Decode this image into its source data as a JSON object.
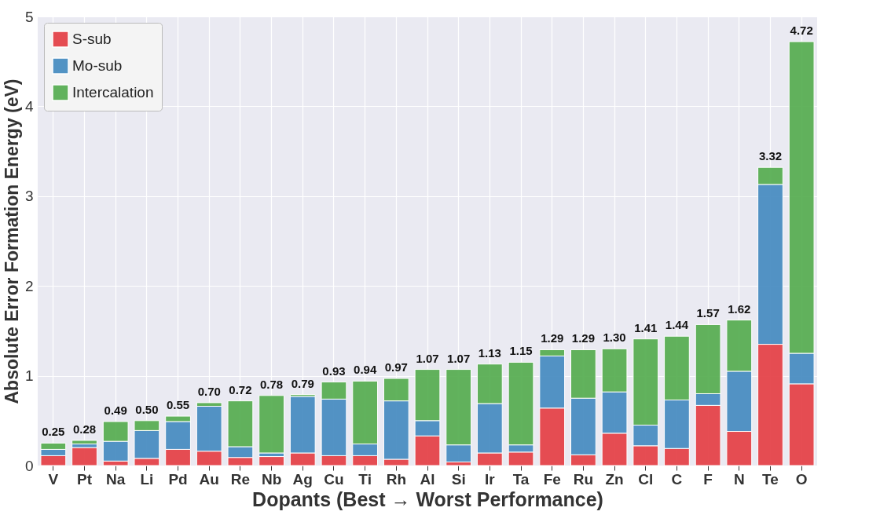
{
  "chart_data": {
    "type": "bar",
    "stacked": true,
    "xlabel": "Dopants (Best → Worst Performance)",
    "ylabel": "Absolute Error Formation Energy (eV)",
    "categories": [
      "V",
      "Pt",
      "Na",
      "Li",
      "Pd",
      "Au",
      "Re",
      "Nb",
      "Ag",
      "Cu",
      "Ti",
      "Rh",
      "Al",
      "Si",
      "Ir",
      "Ta",
      "Fe",
      "Ru",
      "Zn",
      "Cl",
      "C",
      "F",
      "N",
      "Te",
      "O"
    ],
    "series": [
      {
        "name": "S-sub",
        "color": "#e5444a",
        "values": [
          0.11,
          0.2,
          0.05,
          0.08,
          0.18,
          0.16,
          0.09,
          0.1,
          0.14,
          0.11,
          0.11,
          0.07,
          0.33,
          0.04,
          0.14,
          0.15,
          0.64,
          0.12,
          0.36,
          0.22,
          0.19,
          0.67,
          0.38,
          1.35,
          0.91
        ]
      },
      {
        "name": "Mo-sub",
        "color": "#4a8ec2",
        "values": [
          0.07,
          0.04,
          0.22,
          0.31,
          0.31,
          0.5,
          0.12,
          0.04,
          0.63,
          0.63,
          0.13,
          0.65,
          0.17,
          0.19,
          0.55,
          0.08,
          0.58,
          0.63,
          0.46,
          0.23,
          0.54,
          0.13,
          0.67,
          1.78,
          0.34
        ]
      },
      {
        "name": "Intercalation",
        "color": "#5aaf55",
        "values": [
          0.07,
          0.04,
          0.22,
          0.11,
          0.06,
          0.04,
          0.51,
          0.64,
          0.02,
          0.19,
          0.7,
          0.25,
          0.57,
          0.84,
          0.44,
          0.92,
          0.07,
          0.54,
          0.48,
          0.96,
          0.71,
          0.77,
          0.57,
          0.19,
          3.47
        ]
      }
    ],
    "totals": [
      "0.25",
      "0.28",
      "0.49",
      "0.50",
      "0.55",
      "0.70",
      "0.72",
      "0.78",
      "0.79",
      "0.93",
      "0.94",
      "0.97",
      "1.07",
      "1.07",
      "1.13",
      "1.15",
      "1.29",
      "1.29",
      "1.30",
      "1.41",
      "1.44",
      "1.57",
      "1.62",
      "3.32",
      "4.72"
    ],
    "ylim": [
      0,
      5
    ],
    "yticks": [
      0,
      1,
      2,
      3,
      4,
      5
    ],
    "grid": true,
    "legend": "top left"
  }
}
